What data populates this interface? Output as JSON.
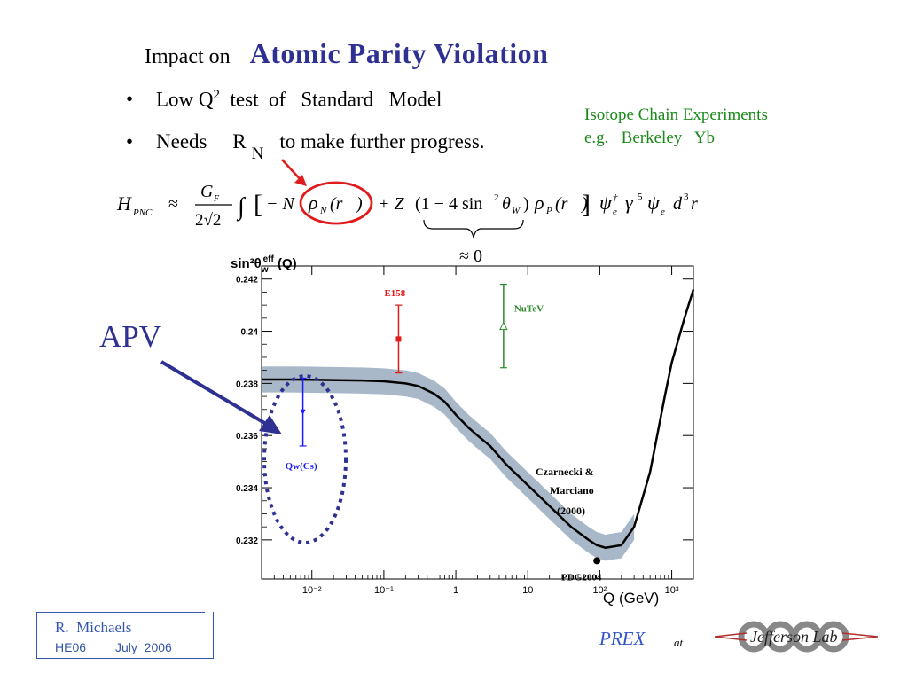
{
  "header": {
    "title_prefix": "Impact  on",
    "title_main": "Atomic  Parity  Violation"
  },
  "bullets": [
    {
      "label": "Low  Q",
      "sup": "2",
      "rest": "  test  of   Standard   Model"
    },
    {
      "label": "Needs     R",
      "sub": "N",
      "rest": "to make further  progress."
    }
  ],
  "side_note": {
    "line1": "Isotope  Chain  Experiments",
    "line2": "e.g.   Berkeley   Yb"
  },
  "formula": {
    "lhs": "H",
    "lhs_sub": "PNC",
    "approx": "≈",
    "frac_num": "G",
    "frac_num_sub": "F",
    "frac_den": "2√2",
    "integral": "∫",
    "term1": "− N",
    "rho_n": "ρ",
    "rho_n_sub": "N",
    "r_vec": "(r⃗)",
    "plus": "+ Z",
    "paren_open": "(1 − 4 sin",
    "sin_sup": "2",
    "theta": "θ",
    "theta_sub": "W",
    "paren_close": ")",
    "rho_p": "ρ",
    "rho_p_sub": "P",
    "r_vec2": "(r⃗)",
    "psi_tail": "ψ",
    "psi_sup": "†",
    "psi_sub": "e",
    "gamma": "γ",
    "gamma_sup": "5",
    "psi2": "ψ",
    "psi2_sub": "e",
    "d3r": "d",
    "d3r_sup": "3",
    "r": "r",
    "brace_label": "≈ 0"
  },
  "apv_label": "APV",
  "chart_data": {
    "type": "line",
    "xscale": "log",
    "xlim": [
      0.002,
      2000
    ],
    "ylim": [
      0.2305,
      0.2425
    ],
    "xticks": [
      0.01,
      0.1,
      1,
      10,
      100,
      1000
    ],
    "xtick_labels": [
      "10⁻²",
      "10⁻¹",
      "1",
      "10",
      "10²",
      "10³"
    ],
    "yticks": [
      0.232,
      0.234,
      0.236,
      0.238,
      0.24,
      0.242
    ],
    "ytick_labels": [
      "0.232",
      "0.234",
      "0.236",
      "0.238",
      "0.24",
      "0.242"
    ],
    "ylabel": "sin²θ_W^eff (Q)",
    "xlabel": "Q (GeV)",
    "curve": {
      "x": [
        0.002,
        0.005,
        0.01,
        0.05,
        0.1,
        0.2,
        0.3,
        0.5,
        0.7,
        1,
        1.5,
        2,
        3,
        5,
        10,
        20,
        40,
        70,
        91.19,
        120,
        200,
        300,
        500,
        800,
        1000,
        1500,
        2000
      ],
      "y": [
        0.23815,
        0.23815,
        0.23814,
        0.23811,
        0.23808,
        0.238,
        0.2379,
        0.2376,
        0.2373,
        0.2368,
        0.2363,
        0.236,
        0.2356,
        0.2349,
        0.2341,
        0.2333,
        0.2325,
        0.232,
        0.2318,
        0.2317,
        0.2318,
        0.2325,
        0.2346,
        0.2375,
        0.2388,
        0.2405,
        0.2416
      ]
    },
    "band_halfwidth": 0.0005,
    "points": [
      {
        "name": "Qw(Cs)",
        "x": 0.0075,
        "y": 0.2369,
        "err": 0.0013,
        "color": "#1a1aff",
        "marker": "triangle-down",
        "label": "Qw(Cs)"
      },
      {
        "name": "E158",
        "x": 0.16,
        "y": 0.2397,
        "err": 0.0013,
        "color": "#e01b1b",
        "marker": "square",
        "label": "E158"
      },
      {
        "name": "NuTeV",
        "x": 4.6,
        "y": 0.2402,
        "err": 0.0016,
        "color": "#2d8a2d",
        "marker": "triangle-up",
        "label": "NuTeV"
      },
      {
        "name": "PDG2004",
        "x": 91.19,
        "y": 0.2312,
        "err": 0,
        "color": "#000000",
        "marker": "circle",
        "label": "PDG2004"
      }
    ],
    "annotations": [
      "Czarnecki &",
      "Marciano",
      "(2000)"
    ],
    "colors": {
      "curve": "#000000",
      "band": "#a8b8c8",
      "apv_arrow": "#2e3192",
      "circle": "#e01b1b"
    }
  },
  "footer": {
    "author": "R.  Michaels",
    "venue": "HE06",
    "date": "July  2006",
    "prex": "PREX",
    "at": "at",
    "logo": "Jefferson Lab"
  }
}
